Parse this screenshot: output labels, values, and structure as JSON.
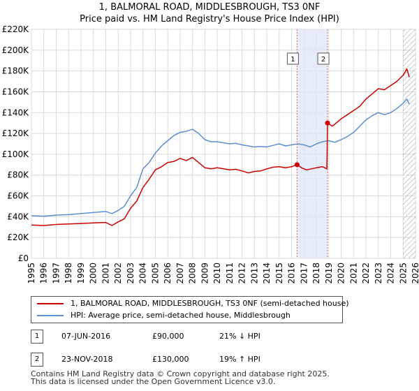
{
  "title_line1": "1, BALMORAL ROAD, MIDDLESBROUGH, TS3 0NF",
  "title_line2": "Price paid vs. HM Land Registry's House Price Index (HPI)",
  "chart_data": {
    "type": "line",
    "xlabel": "",
    "ylabel": "",
    "xlim": [
      1995,
      2026
    ],
    "ylim": [
      0,
      220000
    ],
    "grid": true,
    "x_ticks": [
      "1995",
      "1996",
      "1997",
      "1998",
      "1999",
      "2000",
      "2001",
      "2002",
      "2003",
      "2004",
      "2005",
      "2006",
      "2007",
      "2008",
      "2009",
      "2010",
      "2011",
      "2012",
      "2013",
      "2014",
      "2015",
      "2016",
      "2017",
      "2018",
      "2019",
      "2020",
      "2021",
      "2022",
      "2023",
      "2024",
      "2025",
      "2026"
    ],
    "y_ticks": [
      {
        "value": 0,
        "label": "£0"
      },
      {
        "value": 20000,
        "label": "£20K"
      },
      {
        "value": 40000,
        "label": "£40K"
      },
      {
        "value": 60000,
        "label": "£60K"
      },
      {
        "value": 80000,
        "label": "£80K"
      },
      {
        "value": 100000,
        "label": "£100K"
      },
      {
        "value": 120000,
        "label": "£120K"
      },
      {
        "value": 140000,
        "label": "£140K"
      },
      {
        "value": 160000,
        "label": "£160K"
      },
      {
        "value": 180000,
        "label": "£180K"
      },
      {
        "value": 200000,
        "label": "£200K"
      },
      {
        "value": 220000,
        "label": "£220K"
      }
    ],
    "series": [
      {
        "name": "1, BALMORAL ROAD, MIDDLESBROUGH, TS3 0NF (semi-detached house)",
        "color": "#cc0000",
        "x": [
          1995.0,
          1996.0,
          1997.0,
          1998.0,
          1999.0,
          2000.0,
          2001.0,
          2001.5,
          2002.0,
          2002.5,
          2003.0,
          2003.5,
          2004.0,
          2004.5,
          2005.0,
          2005.5,
          2006.0,
          2006.5,
          2007.0,
          2007.5,
          2008.0,
          2008.5,
          2009.0,
          2009.5,
          2010.0,
          2010.5,
          2011.0,
          2011.5,
          2012.0,
          2012.5,
          2013.0,
          2013.5,
          2014.0,
          2014.5,
          2015.0,
          2015.5,
          2016.0,
          2016.44,
          2016.8,
          2017.2,
          2017.6,
          2018.0,
          2018.5,
          2018.85,
          2018.9,
          2019.3,
          2019.7,
          2020.0,
          2020.5,
          2021.0,
          2021.5,
          2022.0,
          2022.5,
          2023.0,
          2023.5,
          2024.0,
          2024.5,
          2025.0,
          2025.3,
          2025.5
        ],
        "y": [
          32000,
          31500,
          32500,
          33000,
          33500,
          34000,
          34500,
          31500,
          35000,
          38000,
          48000,
          55000,
          68000,
          76000,
          85000,
          88000,
          92000,
          93000,
          96000,
          94000,
          97000,
          92000,
          87000,
          86000,
          87000,
          86000,
          85000,
          85500,
          84000,
          82000,
          83500,
          84000,
          86000,
          87500,
          88000,
          87000,
          88000,
          90000,
          87000,
          85000,
          86000,
          87000,
          88000,
          86000,
          130000,
          127000,
          131000,
          134000,
          138000,
          142000,
          146000,
          153000,
          158000,
          163000,
          162000,
          166000,
          170000,
          176000,
          182000,
          174000
        ]
      },
      {
        "name": "HPI: Average price, semi-detached house, Middlesbrough",
        "color": "#5b8fd1",
        "x": [
          1995.0,
          1996.0,
          1997.0,
          1998.0,
          1999.0,
          2000.0,
          2001.0,
          2001.5,
          2002.0,
          2002.5,
          2003.0,
          2003.5,
          2004.0,
          2004.5,
          2005.0,
          2005.5,
          2006.0,
          2006.5,
          2007.0,
          2007.5,
          2008.0,
          2008.5,
          2009.0,
          2009.5,
          2010.0,
          2010.5,
          2011.0,
          2011.5,
          2012.0,
          2012.5,
          2013.0,
          2013.5,
          2014.0,
          2014.5,
          2015.0,
          2015.5,
          2016.0,
          2016.5,
          2017.0,
          2017.5,
          2018.0,
          2018.5,
          2019.0,
          2019.5,
          2020.0,
          2020.5,
          2021.0,
          2021.5,
          2022.0,
          2022.5,
          2023.0,
          2023.5,
          2024.0,
          2024.5,
          2025.0,
          2025.3,
          2025.5
        ],
        "y": [
          41000,
          40500,
          41500,
          42000,
          43000,
          44000,
          45000,
          43000,
          46000,
          50000,
          60000,
          68000,
          86000,
          92000,
          101000,
          108000,
          113000,
          118000,
          121000,
          122000,
          124000,
          120000,
          114000,
          112000,
          112000,
          111000,
          110000,
          110500,
          109000,
          108000,
          107000,
          107500,
          107000,
          108500,
          110000,
          108000,
          109000,
          110000,
          109000,
          107000,
          110000,
          112000,
          113000,
          111500,
          114000,
          117000,
          121000,
          127000,
          133000,
          137000,
          140000,
          138000,
          140000,
          144000,
          149000,
          153000,
          148000
        ]
      }
    ],
    "shaded_region": {
      "x_start": 2016.44,
      "x_end": 2018.9
    },
    "hatched_region": {
      "x_start": 2025.0,
      "x_end": 2026.0
    },
    "annotations": [
      {
        "label": "1",
        "x": 2016.44,
        "y": 90000
      },
      {
        "label": "2",
        "x": 2018.9,
        "y": 130000
      }
    ]
  },
  "legend": [
    {
      "label": "1, BALMORAL ROAD, MIDDLESBROUGH, TS3 0NF (semi-detached house)",
      "color": "#cc0000"
    },
    {
      "label": "HPI: Average price, semi-detached house, Middlesbrough",
      "color": "#5b8fd1"
    }
  ],
  "transactions": [
    {
      "num": "1",
      "date": "07-JUN-2016",
      "price": "£90,000",
      "hpi": "21% ↓ HPI"
    },
    {
      "num": "2",
      "date": "23-NOV-2018",
      "price": "£130,000",
      "hpi": "19% ↑ HPI"
    }
  ],
  "footer": {
    "line1": "Contains HM Land Registry data © Crown copyright and database right 2025.",
    "line2": "This data is licensed under the Open Government Licence v3.0."
  }
}
